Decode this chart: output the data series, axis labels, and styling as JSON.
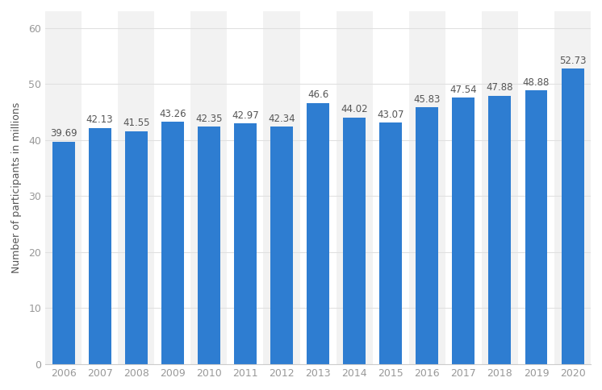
{
  "years": [
    "2006",
    "2007",
    "2008",
    "2009",
    "2010",
    "2011",
    "2012",
    "2013",
    "2014",
    "2015",
    "2016",
    "2017",
    "2018",
    "2019",
    "2020"
  ],
  "values": [
    39.69,
    42.13,
    41.55,
    43.26,
    42.35,
    42.97,
    42.34,
    46.6,
    44.02,
    43.07,
    45.83,
    47.54,
    47.88,
    48.88,
    52.73
  ],
  "bar_color": "#2e7dd1",
  "background_color": "#ffffff",
  "plot_background_color": "#ffffff",
  "band_color_light": "#f2f2f2",
  "band_color_dark": "#ffffff",
  "ylabel": "Number of participants in millions",
  "ylim": [
    0,
    63
  ],
  "yticks": [
    0,
    10,
    20,
    30,
    40,
    50,
    60
  ],
  "grid_color": "#e0e0e0",
  "label_fontsize": 9.0,
  "axis_fontsize": 9.0,
  "bar_label_fontsize": 8.5,
  "tick_color": "#999999",
  "bar_width": 0.62
}
